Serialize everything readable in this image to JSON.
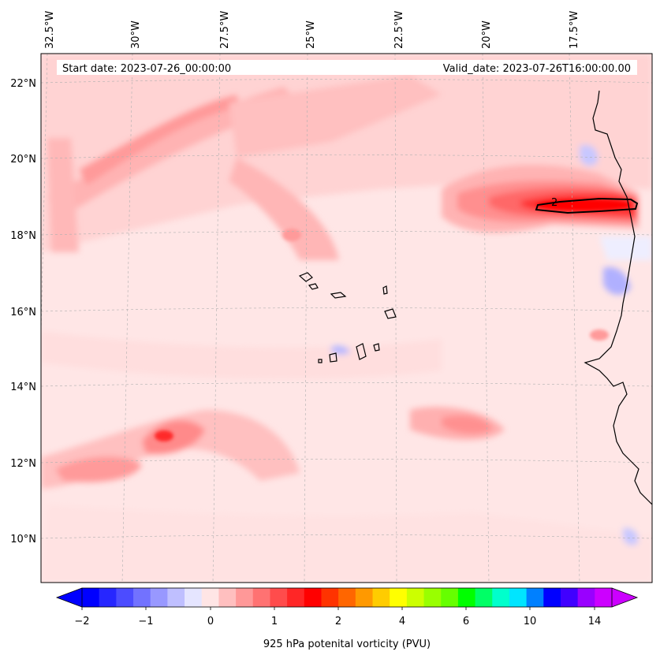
{
  "header": {
    "start_date": "Start date: 2023-07-26_00:00:00",
    "valid_date": "Valid_date: 2023-07-26T16:00:00.00"
  },
  "axes": {
    "lon_labels": [
      "32.5°W",
      "30°W",
      "27.5°W",
      "25°W",
      "22.5°W",
      "20°W",
      "17.5°W"
    ],
    "lat_labels": [
      "22°N",
      "20°N",
      "18°N",
      "16°N",
      "14°N",
      "12°N",
      "10°N"
    ]
  },
  "contour_label": "2",
  "colorbar": {
    "label": "925 hPa potenital vorticity (PVU)",
    "tick_labels": [
      "−2",
      "−1",
      "0",
      "1",
      "2",
      "4",
      "6",
      "10",
      "14"
    ],
    "colors": [
      "#0000ff",
      "#2626ff",
      "#4c4cff",
      "#7272ff",
      "#9898ff",
      "#bfbfff",
      "#e5e5ff",
      "#ffe5e5",
      "#ffbfbf",
      "#ff9898",
      "#ff7272",
      "#ff4c4c",
      "#ff2626",
      "#ff0000",
      "#ff3300",
      "#ff6600",
      "#ff9900",
      "#ffcc00",
      "#ffff00",
      "#ccff00",
      "#99ff00",
      "#66ff00",
      "#00ff00",
      "#00ff66",
      "#00ffcc",
      "#00e5ff",
      "#0080ff",
      "#0000ff",
      "#4000ff",
      "#9900ff",
      "#cc00ff"
    ],
    "extend_min_color": "#0000ff",
    "extend_max_color": "#cc00ff"
  }
}
